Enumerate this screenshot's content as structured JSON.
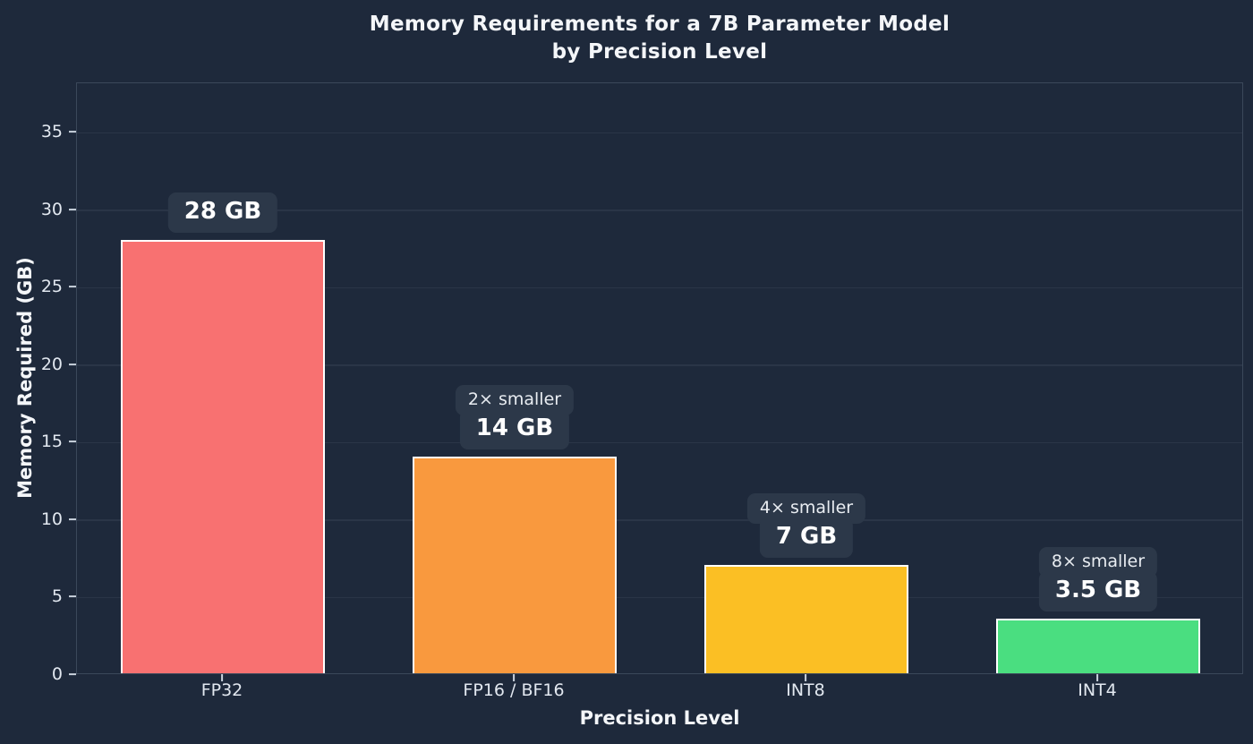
{
  "chart": {
    "title_line1": "Memory Requirements for a 7B Parameter Model",
    "title_line2": "by Precision Level"
  },
  "chart_data": {
    "type": "bar",
    "title": "Memory Requirements for a 7B Parameter Model\nby Precision Level",
    "categories": [
      "FP32",
      "FP16 / BF16",
      "INT8",
      "INT4"
    ],
    "values": [
      28,
      14,
      7,
      3.5
    ],
    "bar_value_labels": [
      "28 GB",
      "14 GB",
      "7 GB",
      "3.5 GB"
    ],
    "bar_ratio_labels": [
      null,
      "2× smaller",
      "4× smaller",
      "8× smaller"
    ],
    "bar_colors": [
      "#F87171",
      "#F9993E",
      "#FBBF24",
      "#4ADE80"
    ],
    "bar_edge_color": "#FFFFFF",
    "xlabel": "Precision Level",
    "ylabel": "Memory Required (GB)",
    "yticks": [
      0,
      5,
      10,
      15,
      20,
      25,
      30,
      35
    ],
    "ylim": [
      0,
      38.2
    ],
    "grid": "horizontal-only",
    "legend": "none",
    "background_color": "#1E293B",
    "gridline_color": "#2A3547",
    "annotation_box_color": "#2C3849"
  }
}
